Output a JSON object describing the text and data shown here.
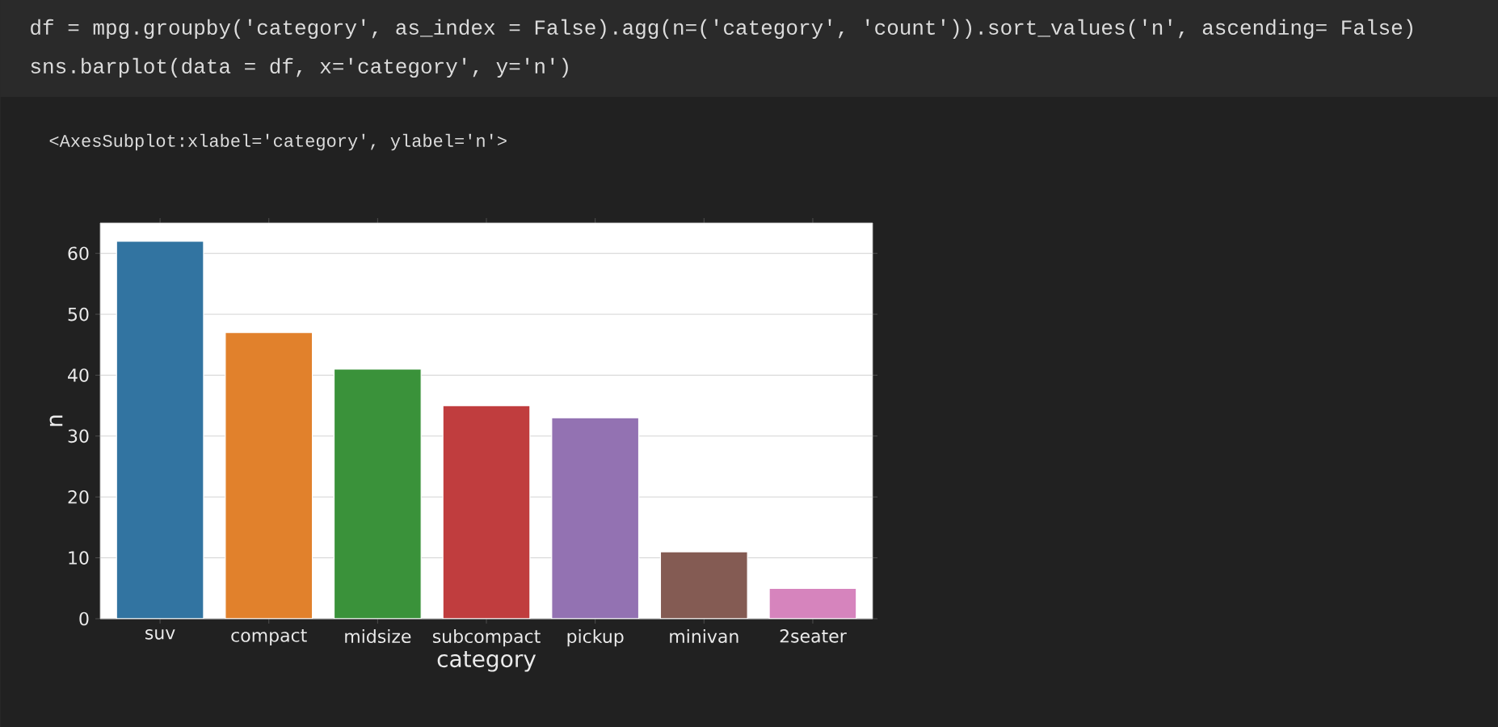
{
  "chart_data": {
    "type": "bar",
    "xlabel": "category",
    "ylabel": "n",
    "categories": [
      "suv",
      "compact",
      "midsize",
      "subcompact",
      "pickup",
      "minivan",
      "2seater"
    ],
    "values": [
      62,
      47,
      41,
      35,
      33,
      11,
      5
    ],
    "colors": [
      "#3274a1",
      "#e1812c",
      "#3a923a",
      "#c03d3e",
      "#9372b2",
      "#845b53",
      "#d684bd"
    ],
    "ylim": [
      0,
      65
    ],
    "yticks": [
      0,
      10,
      20,
      30,
      40,
      50,
      60
    ],
    "grid": "y",
    "annotations": [
      "df = mpg.groupby('category', as_index = False).agg(n=('category', 'count')).sort_values('n', ascending= False)",
      "sns.barplot(data = df, x='category', y='n')",
      "<AxesSubplot:xlabel='category', ylabel='n'>"
    ]
  }
}
